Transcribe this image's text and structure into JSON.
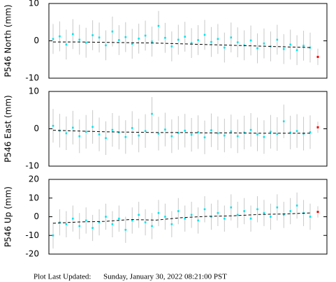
{
  "chart_data": [
    {
      "type": "scatter",
      "ylabel": "P546 North (mm)",
      "ylim": [
        -10,
        10
      ],
      "yticks": [
        -10,
        0,
        10
      ],
      "color": "#00e5ee",
      "error_color": "#c8c8c8",
      "error": 4,
      "values": [
        0.5,
        1.2,
        -1.0,
        1.8,
        0.3,
        -0.5,
        1.5,
        0.9,
        -1.2,
        2.5,
        0.2,
        1.0,
        -0.8,
        0.6,
        1.4,
        -0.2,
        4.0,
        0.8,
        -1.5,
        0.3,
        1.1,
        -0.6,
        0.2,
        1.6,
        -0.3,
        0.5,
        -1.8,
        0.9,
        -0.4,
        -1.2,
        0.1,
        -2.0,
        -0.7,
        -1.5,
        0.3,
        -2.2,
        -1.0,
        -2.5,
        -1.3,
        -1.8
      ],
      "trend": [
        -0.3,
        -0.3,
        -0.4,
        -0.5,
        -0.6,
        -0.8,
        -1.0,
        -1.2,
        -1.4,
        -1.6,
        -1.8
      ],
      "trend_color": "#000000",
      "latest": {
        "value": -4.3,
        "error": 2.2,
        "color": "#ff0000"
      }
    },
    {
      "type": "scatter",
      "ylabel": "P546 East (mm)",
      "ylim": [
        -10,
        10
      ],
      "yticks": [
        -10,
        0,
        10
      ],
      "color": "#00e5ee",
      "error_color": "#c8c8c8",
      "error": 4.5,
      "values": [
        0.8,
        -0.5,
        -1.2,
        0.3,
        -2.0,
        -0.8,
        0.5,
        -1.5,
        -2.5,
        -0.3,
        -1.0,
        -2.2,
        0.2,
        -1.8,
        -0.6,
        4.0,
        -1.3,
        -0.2,
        -2.0,
        -1.1,
        -0.5,
        -1.6,
        -0.9,
        -2.3,
        -0.4,
        -1.2,
        -1.8,
        -0.7,
        -2.0,
        -1.0,
        -0.3,
        -1.5,
        -2.2,
        -0.8,
        -1.4,
        2.0,
        -1.0,
        -0.6,
        -1.3,
        -0.9
      ],
      "trend": [
        -0.4,
        -0.6,
        -0.8,
        -0.9,
        -1.0,
        -1.0,
        -1.1,
        -1.1,
        -1.2,
        -1.2,
        -1.2
      ],
      "trend_color": "#000000",
      "latest": {
        "value": 0.4,
        "error": 1.5,
        "color": "#ff0000"
      }
    },
    {
      "type": "scatter",
      "ylabel": "P546 Up (mm)",
      "ylim": [
        -20,
        20
      ],
      "yticks": [
        -20,
        -10,
        0,
        10,
        20
      ],
      "color": "#00e5ee",
      "error_color": "#c8c8c8",
      "error": 7,
      "values": [
        -10,
        -3,
        -4,
        -1,
        -5,
        -2,
        -6,
        -3,
        0,
        -4,
        -1,
        -7,
        -2,
        1,
        -3,
        -5,
        2,
        0,
        -4,
        3,
        -1,
        1,
        -2,
        4,
        0,
        2,
        -1,
        5,
        1,
        3,
        -1,
        4,
        2,
        0,
        5,
        1,
        3,
        6,
        2,
        0
      ],
      "trend": [
        -3.5,
        -2.8,
        -2.5,
        -1.5,
        -1.8,
        -0.5,
        0.2,
        0.5,
        1.2,
        1.5,
        2.0
      ],
      "trend_color": "#000000",
      "latest": {
        "value": 2.6,
        "error": 3,
        "color": "#ff0000"
      }
    }
  ],
  "footer": {
    "label": "Plot Last Updated:",
    "date": "Sunday, January 30, 2022 08:21:00 PST"
  }
}
